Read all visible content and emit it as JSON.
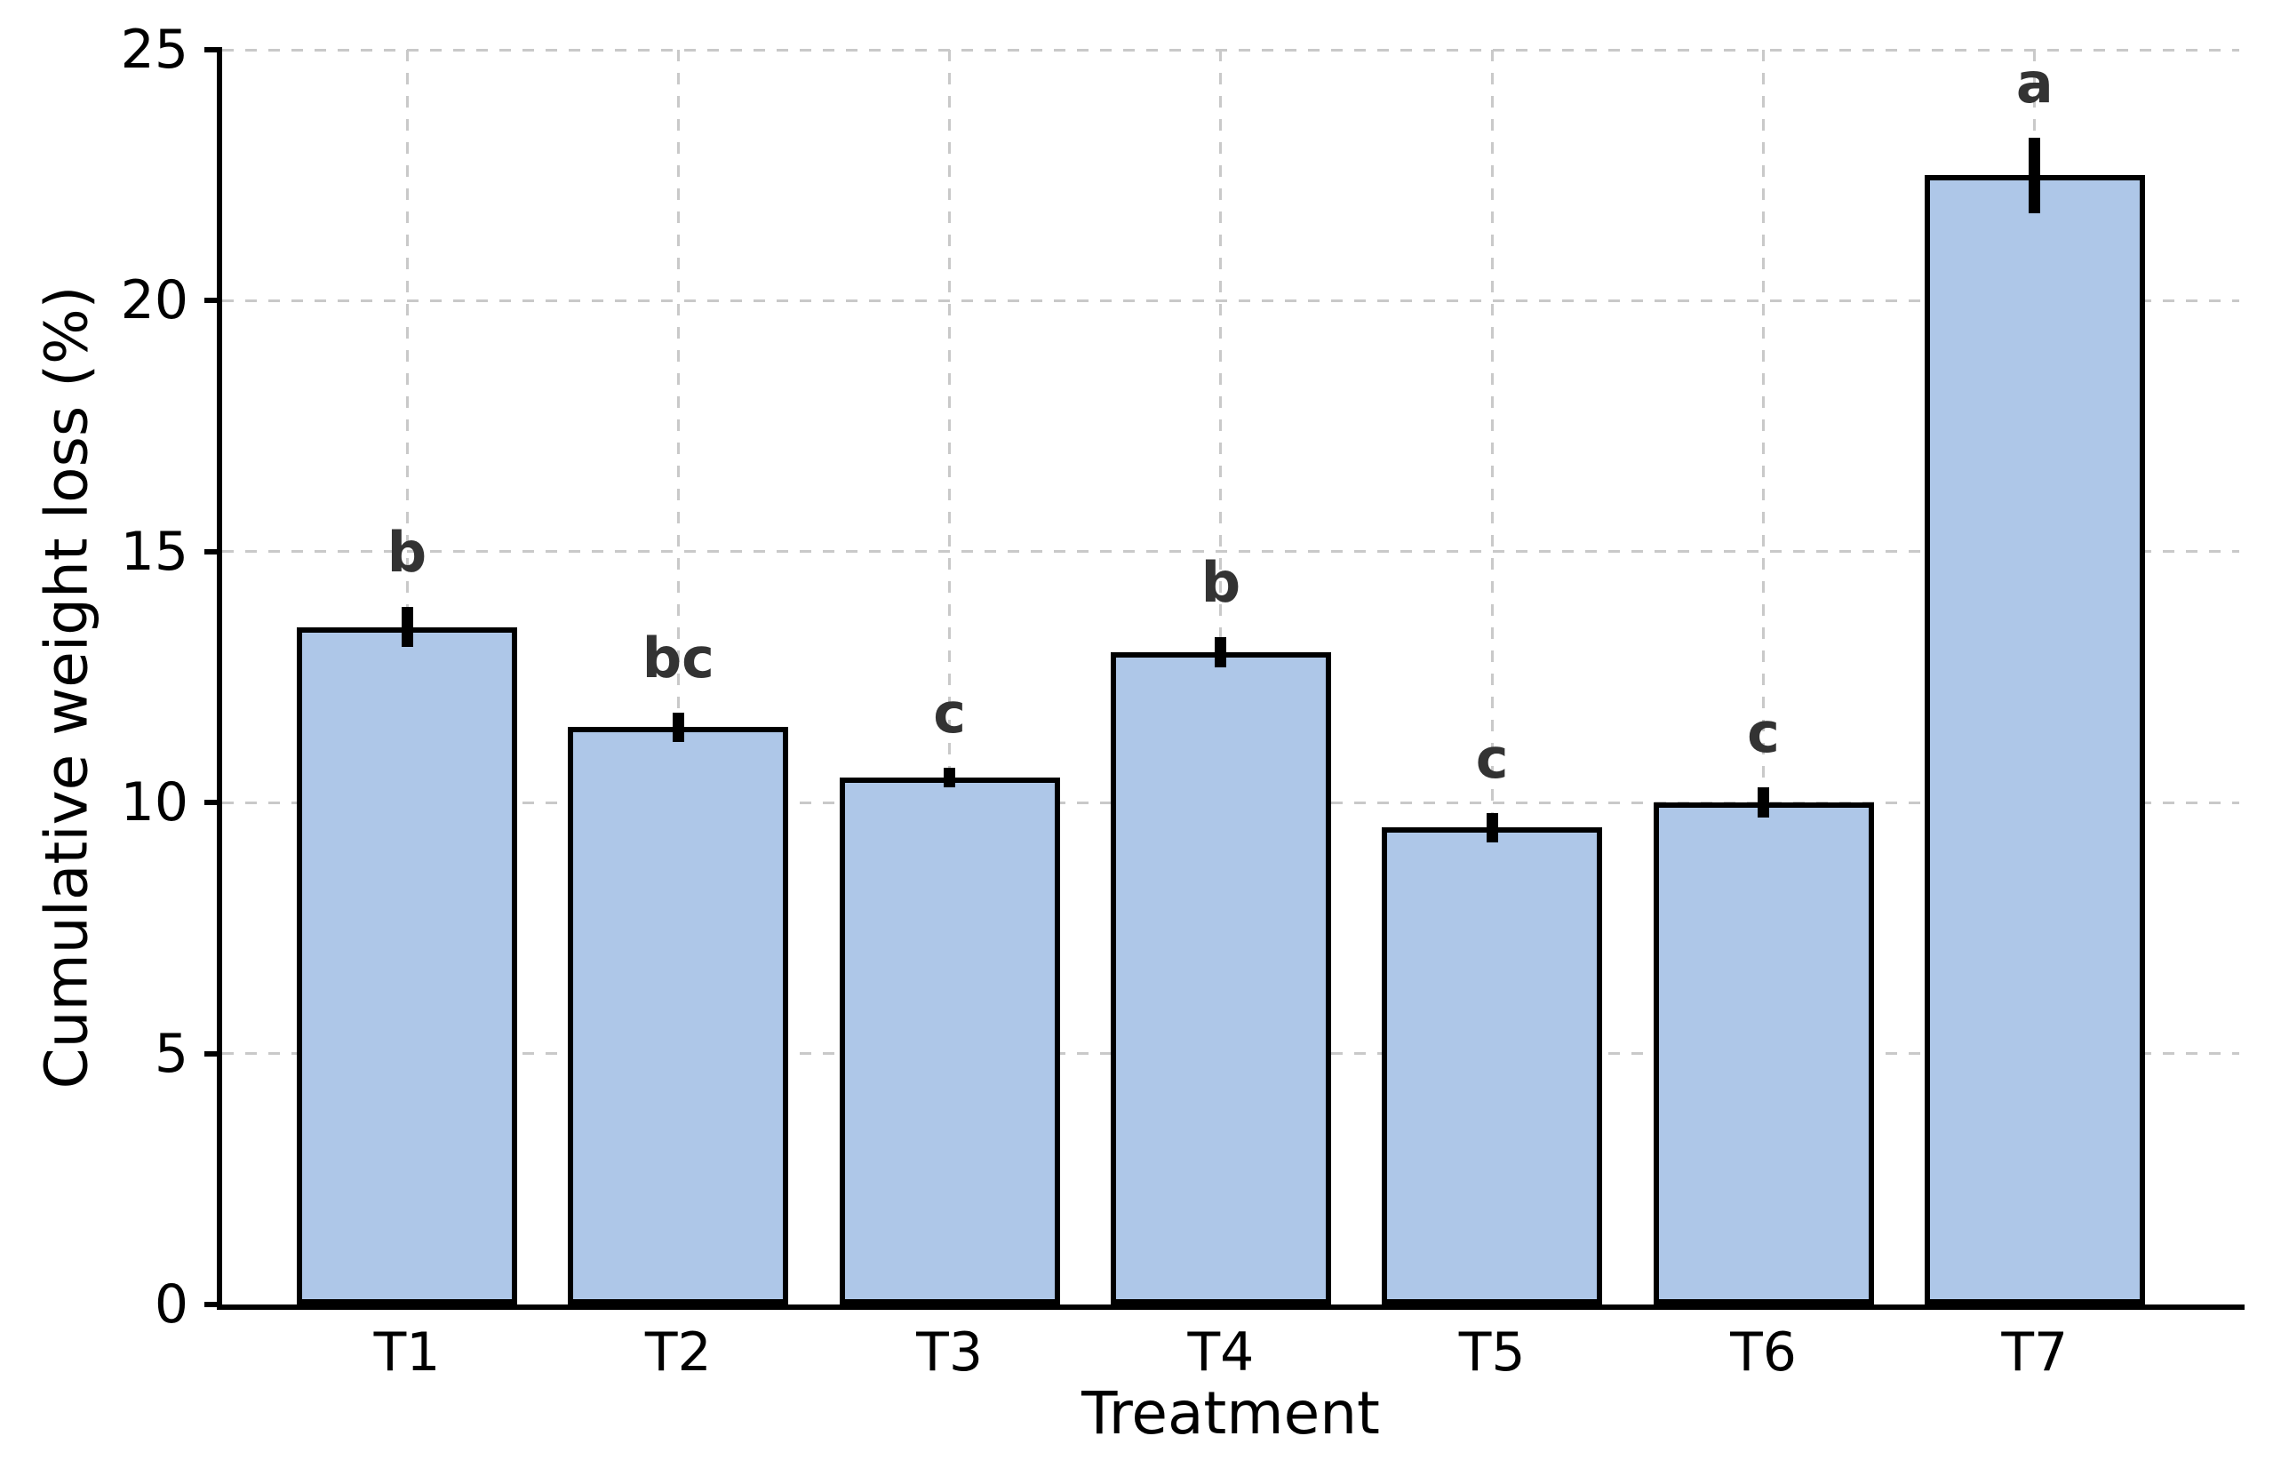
{
  "figure": {
    "background_color": "#ffffff"
  },
  "chart_data": {
    "type": "bar",
    "title": "",
    "xlabel": "Treatment",
    "ylabel": "Cumulative weight loss (%)",
    "categories": [
      "T1",
      "T2",
      "T3",
      "T4",
      "T5",
      "T6",
      "T7"
    ],
    "series": [
      {
        "name": "Cumulative weight loss",
        "values": [
          13.5,
          11.5,
          10.5,
          13.0,
          9.5,
          10.0,
          22.5
        ],
        "errors": [
          0.4,
          0.3,
          0.2,
          0.3,
          0.3,
          0.3,
          0.75
        ],
        "significance_letters": [
          "b",
          "bc",
          "c",
          "b",
          "c",
          "c",
          "a"
        ]
      }
    ],
    "ylim": [
      0,
      25
    ],
    "yticks": [
      0,
      5,
      10,
      15,
      20,
      25
    ],
    "grid": {
      "horizontal": true,
      "vertical": true,
      "style": "dashed"
    },
    "legend_position": "none",
    "colors": {
      "bar_fill": "#aec7e8",
      "bar_edge": "#000000",
      "error_bar": "#000000",
      "grid_line": "#c9c9c9",
      "sig_letter": "#333333",
      "axis": "#000000",
      "text": "#000000"
    }
  }
}
